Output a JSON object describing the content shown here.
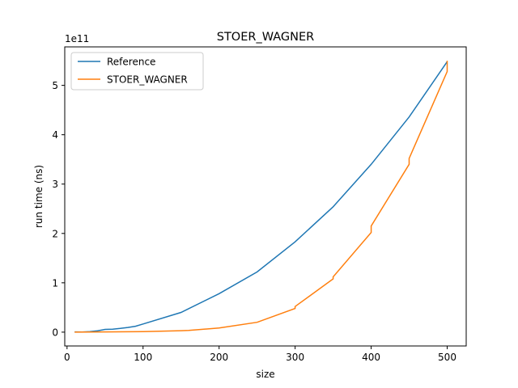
{
  "chart_data": {
    "type": "line",
    "title": "STOER_WAGNER",
    "xlabel": "size",
    "ylabel": "run time (ns)",
    "y_offset_label": "1e11",
    "xlim": [
      -3,
      525
    ],
    "ylim": [
      -0.28,
      5.78
    ],
    "x_ticks": [
      0,
      100,
      200,
      300,
      400,
      500
    ],
    "x_tick_labels": [
      "0",
      "100",
      "200",
      "300",
      "400",
      "500"
    ],
    "y_ticks": [
      0,
      1,
      2,
      3,
      4,
      5
    ],
    "y_tick_labels": [
      "0",
      "1",
      "2",
      "3",
      "4",
      "5"
    ],
    "grid": false,
    "legend_position": "top-left",
    "series": [
      {
        "name": "Reference",
        "color": "#1f77b4",
        "x": [
          10,
          20,
          30,
          40,
          50,
          60,
          70,
          80,
          90,
          100,
          150,
          200,
          250,
          300,
          350,
          400,
          450,
          500
        ],
        "y": [
          0.0044,
          0.0035,
          0.012,
          0.028,
          0.055,
          0.06,
          0.075,
          0.095,
          0.12,
          0.165,
          0.4,
          0.78,
          1.22,
          1.83,
          2.54,
          3.4,
          4.36,
          5.48
        ]
      },
      {
        "name": "STOER_WAGNER",
        "color": "#ff7f0e",
        "x": [
          10,
          50,
          100,
          150,
          160,
          200,
          250,
          300,
          300,
          350,
          350,
          400,
          400,
          450,
          450,
          500,
          500
        ],
        "y": [
          0.0,
          0.005,
          0.012,
          0.03,
          0.035,
          0.085,
          0.2,
          0.48,
          0.52,
          1.08,
          1.12,
          2.02,
          2.15,
          3.4,
          3.52,
          5.28,
          5.5
        ]
      }
    ]
  }
}
